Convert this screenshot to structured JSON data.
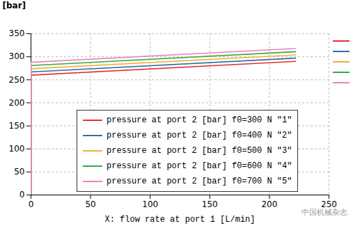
{
  "chart_data": {
    "type": "line",
    "x_label": "X: flow rate at port 1 [L/min]",
    "y_label": "[bar]",
    "x": [
      0,
      0,
      222
    ],
    "series": [
      {
        "name": "pressure at port 2 [bar] f0=300 N \"1\"",
        "color": "#e8312f",
        "values": [
          0,
          260,
          290
        ]
      },
      {
        "name": "pressure at port 2 [bar] f0=400 N \"2\"",
        "color": "#2a6fa8",
        "values": [
          0,
          267,
          297
        ]
      },
      {
        "name": "pressure at port 2 [bar] f0=500 N \"3\"",
        "color": "#f2b134",
        "values": [
          0,
          274,
          304
        ]
      },
      {
        "name": "pressure at port 2 [bar] f0=600 N \"4\"",
        "color": "#3aa845",
        "values": [
          0,
          281,
          311
        ]
      },
      {
        "name": "pressure at port 2 [bar] f0=700 N \"5\"",
        "color": "#ef82bd",
        "values": [
          0,
          288,
          318
        ]
      }
    ],
    "xlim": [
      0,
      250
    ],
    "xticks": [
      0,
      50,
      100,
      150,
      200,
      250
    ],
    "ylim": [
      0,
      350
    ],
    "yticks": [
      0,
      50,
      100,
      150,
      200,
      250,
      300,
      350
    ],
    "grid": true,
    "legend": "bottom",
    "annotations": [
      "中国机械杂志"
    ]
  }
}
